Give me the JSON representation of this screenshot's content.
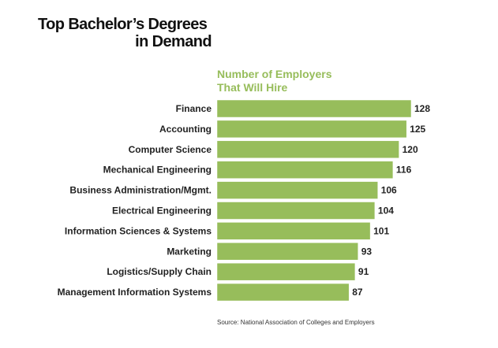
{
  "title": {
    "line1": "Top Bachelor’s Degrees",
    "line2": "in Demand"
  },
  "subtitle": {
    "line1": "Number of Employers",
    "line2": "That Will Hire"
  },
  "source": "Source: National Association of Colleges and Employers",
  "colors": {
    "bar": "#97bd5b",
    "subtitle": "#97bd5b",
    "text": "#222222"
  },
  "chart_data": {
    "type": "bar",
    "orientation": "horizontal",
    "title": "Top Bachelor’s Degrees in Demand",
    "subtitle": "Number of Employers That Will Hire",
    "categories": [
      "Finance",
      "Accounting",
      "Computer Science",
      "Mechanical Engineering",
      "Business Administration/Mgmt.",
      "Electrical Engineering",
      "Information Sciences & Systems",
      "Marketing",
      "Logistics/Supply Chain",
      "Management Information Systems"
    ],
    "values": [
      128,
      125,
      120,
      116,
      106,
      104,
      101,
      93,
      91,
      87
    ],
    "xlim": [
      0,
      128
    ],
    "grid": false,
    "data_labels": true
  }
}
